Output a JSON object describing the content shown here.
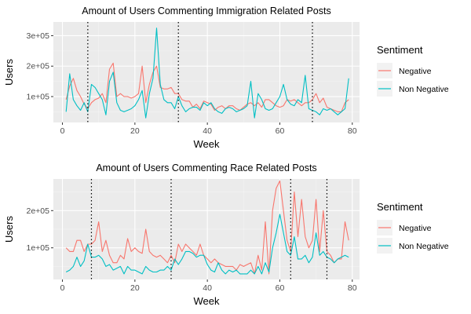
{
  "chart_data": [
    {
      "type": "line",
      "title": "Amount of Users Commenting Immigration Related Posts",
      "xlabel": "Week",
      "ylabel": "Users",
      "xlim": [
        -2.5,
        82
      ],
      "ylim": [
        15000,
        345000
      ],
      "x_ticks": [
        0,
        20,
        40,
        60,
        80
      ],
      "x_tick_labels": [
        "0",
        "20",
        "40",
        "60",
        "80"
      ],
      "y_ticks": [
        100000,
        200000,
        300000
      ],
      "y_tick_labels": [
        "1e+05",
        "2e+05",
        "3e+05"
      ],
      "grid": true,
      "vlines": [
        7,
        32,
        69
      ],
      "legend": {
        "title": "Sentiment",
        "position": "right"
      },
      "series": [
        {
          "name": "Negative",
          "color": "#F8766D",
          "x": [
            1,
            2,
            3,
            4,
            5,
            6,
            7,
            8,
            9,
            10,
            11,
            12,
            13,
            14,
            15,
            16,
            17,
            18,
            19,
            20,
            21,
            22,
            23,
            24,
            25,
            26,
            27,
            28,
            29,
            30,
            31,
            32,
            33,
            34,
            35,
            36,
            37,
            38,
            39,
            40,
            41,
            42,
            43,
            44,
            45,
            46,
            47,
            48,
            49,
            50,
            51,
            52,
            53,
            54,
            55,
            56,
            57,
            58,
            59,
            60,
            61,
            62,
            63,
            64,
            65,
            66,
            67,
            68,
            69,
            70,
            71,
            72,
            73,
            74,
            75,
            76,
            77,
            78,
            79
          ],
          "values": [
            90000,
            135000,
            160000,
            120000,
            100000,
            75000,
            60000,
            80000,
            90000,
            95000,
            110000,
            80000,
            190000,
            210000,
            100000,
            110000,
            100000,
            100000,
            95000,
            100000,
            110000,
            200000,
            80000,
            140000,
            180000,
            200000,
            130000,
            125000,
            125000,
            130000,
            110000,
            110000,
            90000,
            85000,
            85000,
            65000,
            75000,
            60000,
            85000,
            80000,
            75000,
            55000,
            65000,
            70000,
            60000,
            70000,
            70000,
            60000,
            55000,
            65000,
            75000,
            80000,
            70000,
            80000,
            65000,
            90000,
            90000,
            80000,
            70000,
            65000,
            70000,
            90000,
            85000,
            90000,
            80000,
            70000,
            80000,
            80000,
            90000,
            110000,
            80000,
            95000,
            65000,
            60000,
            55000,
            50000,
            50000,
            80000,
            90000
          ]
        },
        {
          "name": "Non Negative",
          "color": "#00BFC4",
          "x": [
            1,
            2,
            3,
            4,
            5,
            6,
            7,
            8,
            9,
            10,
            11,
            12,
            13,
            14,
            15,
            16,
            17,
            18,
            19,
            20,
            21,
            22,
            23,
            24,
            25,
            26,
            27,
            28,
            29,
            30,
            31,
            32,
            33,
            34,
            35,
            36,
            37,
            38,
            39,
            40,
            41,
            42,
            43,
            44,
            45,
            46,
            47,
            48,
            49,
            50,
            51,
            52,
            53,
            54,
            55,
            56,
            57,
            58,
            59,
            60,
            61,
            62,
            63,
            64,
            65,
            66,
            67,
            68,
            69,
            70,
            71,
            72,
            73,
            74,
            75,
            76,
            77,
            78,
            79
          ],
          "values": [
            50000,
            175000,
            90000,
            70000,
            55000,
            80000,
            50000,
            140000,
            130000,
            110000,
            90000,
            40000,
            150000,
            180000,
            80000,
            55000,
            50000,
            55000,
            60000,
            70000,
            90000,
            120000,
            30000,
            110000,
            160000,
            325000,
            140000,
            90000,
            80000,
            80000,
            60000,
            100000,
            70000,
            50000,
            60000,
            65000,
            65000,
            55000,
            80000,
            70000,
            80000,
            60000,
            50000,
            45000,
            60000,
            65000,
            60000,
            50000,
            55000,
            60000,
            70000,
            150000,
            30000,
            110000,
            90000,
            60000,
            55000,
            60000,
            80000,
            100000,
            140000,
            90000,
            75000,
            70000,
            90000,
            80000,
            170000,
            60000,
            55000,
            50000,
            40000,
            60000,
            55000,
            60000,
            50000,
            40000,
            50000,
            60000,
            160000
          ]
        }
      ]
    },
    {
      "type": "line",
      "title": "Amount of Users Commenting Race Related Posts",
      "xlabel": "Week",
      "ylabel": "Users",
      "xlim": [
        -2.5,
        82
      ],
      "ylim": [
        15000,
        285000
      ],
      "x_ticks": [
        0,
        20,
        40,
        60,
        80
      ],
      "x_tick_labels": [
        "0",
        "20",
        "40",
        "60",
        "80"
      ],
      "y_ticks": [
        100000,
        200000
      ],
      "y_tick_labels": [
        "1e+05",
        "2e+05"
      ],
      "grid": true,
      "vlines": [
        8,
        30,
        63,
        73
      ],
      "legend": {
        "title": "Sentiment",
        "position": "right"
      },
      "series": [
        {
          "name": "Negative",
          "color": "#F8766D",
          "x": [
            1,
            2,
            3,
            4,
            5,
            6,
            7,
            8,
            9,
            10,
            11,
            12,
            13,
            14,
            15,
            16,
            17,
            18,
            19,
            20,
            21,
            22,
            23,
            24,
            25,
            26,
            27,
            28,
            29,
            30,
            31,
            32,
            33,
            34,
            35,
            36,
            37,
            38,
            39,
            40,
            41,
            42,
            43,
            44,
            45,
            46,
            47,
            48,
            49,
            50,
            51,
            52,
            53,
            54,
            55,
            56,
            57,
            58,
            59,
            60,
            61,
            62,
            63,
            64,
            65,
            66,
            67,
            68,
            69,
            70,
            71,
            72,
            73,
            74,
            75,
            76,
            77,
            78,
            79
          ],
          "values": [
            100000,
            90000,
            90000,
            120000,
            120000,
            90000,
            110000,
            110000,
            120000,
            170000,
            90000,
            120000,
            80000,
            60000,
            60000,
            80000,
            70000,
            125000,
            90000,
            100000,
            90000,
            85000,
            150000,
            90000,
            80000,
            75000,
            80000,
            70000,
            60000,
            80000,
            60000,
            110000,
            90000,
            110000,
            100000,
            90000,
            80000,
            110000,
            80000,
            70000,
            60000,
            70000,
            60000,
            55000,
            50000,
            50000,
            50000,
            40000,
            55000,
            50000,
            55000,
            60000,
            30000,
            80000,
            40000,
            170000,
            30000,
            200000,
            260000,
            280000,
            200000,
            120000,
            90000,
            250000,
            130000,
            230000,
            130000,
            100000,
            120000,
            230000,
            90000,
            200000,
            90000,
            80000,
            60000,
            70000,
            70000,
            170000,
            120000
          ]
        },
        {
          "name": "Non Negative",
          "color": "#00BFC4",
          "x": [
            1,
            2,
            3,
            4,
            5,
            6,
            7,
            8,
            9,
            10,
            11,
            12,
            13,
            14,
            15,
            16,
            17,
            18,
            19,
            20,
            21,
            22,
            23,
            24,
            25,
            26,
            27,
            28,
            29,
            30,
            31,
            32,
            33,
            34,
            35,
            36,
            37,
            38,
            39,
            40,
            41,
            42,
            43,
            44,
            45,
            46,
            47,
            48,
            49,
            50,
            51,
            52,
            53,
            54,
            55,
            56,
            57,
            58,
            59,
            60,
            61,
            62,
            63,
            64,
            65,
            66,
            67,
            68,
            69,
            70,
            71,
            72,
            73,
            74,
            75,
            76,
            77,
            78,
            79
          ],
          "values": [
            35000,
            40000,
            50000,
            75000,
            50000,
            65000,
            110000,
            75000,
            75000,
            80000,
            70000,
            50000,
            55000,
            40000,
            45000,
            50000,
            30000,
            50000,
            40000,
            40000,
            35000,
            30000,
            50000,
            40000,
            35000,
            35000,
            40000,
            40000,
            50000,
            40000,
            70000,
            55000,
            70000,
            90000,
            90000,
            85000,
            75000,
            80000,
            80000,
            55000,
            40000,
            35000,
            60000,
            40000,
            30000,
            40000,
            35000,
            40000,
            30000,
            30000,
            30000,
            40000,
            30000,
            50000,
            30000,
            60000,
            35000,
            100000,
            140000,
            190000,
            140000,
            90000,
            80000,
            130000,
            70000,
            70000,
            80000,
            60000,
            75000,
            140000,
            80000,
            90000,
            75000,
            70000,
            60000,
            70000,
            75000,
            80000,
            75000
          ]
        }
      ]
    }
  ]
}
